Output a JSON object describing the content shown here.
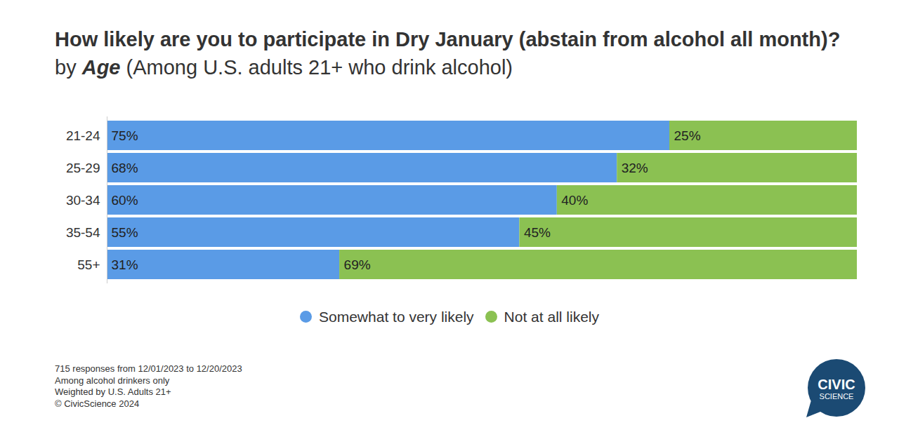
{
  "chart_data": {
    "type": "bar",
    "orientation": "horizontal",
    "stacked": true,
    "data_labels": true,
    "tick_labels": "y",
    "grid": false,
    "legend": "bottom",
    "title": "How likely are you to participate in Dry January (abstain from alcohol all month)?",
    "subtitle": "by Age (Among U.S. adults 21+ who drink alcohol)",
    "categories": [
      "21-24",
      "25-29",
      "30-34",
      "35-54",
      "55+"
    ],
    "xlim": [
      0,
      100
    ],
    "series": [
      {
        "name": "Somewhat to very likely",
        "color": "#5a9be6",
        "values": [
          75,
          68,
          60,
          55,
          31
        ],
        "value_labels": [
          "75%",
          "68%",
          "60%",
          "55%",
          "31%"
        ]
      },
      {
        "name": "Not at all likely",
        "color": "#8bc152",
        "values": [
          25,
          32,
          40,
          45,
          69
        ],
        "value_labels": [
          "25%",
          "32%",
          "40%",
          "45%",
          "69%"
        ]
      }
    ],
    "notes": [
      "715 responses from 12/01/2023 to 12/20/2023",
      "Among alcohol drinkers only",
      "Weighted by U.S. Adults 21+",
      "© CivicScience 2024"
    ],
    "logo": [
      "CIVIC",
      "SCIENCE"
    ]
  }
}
